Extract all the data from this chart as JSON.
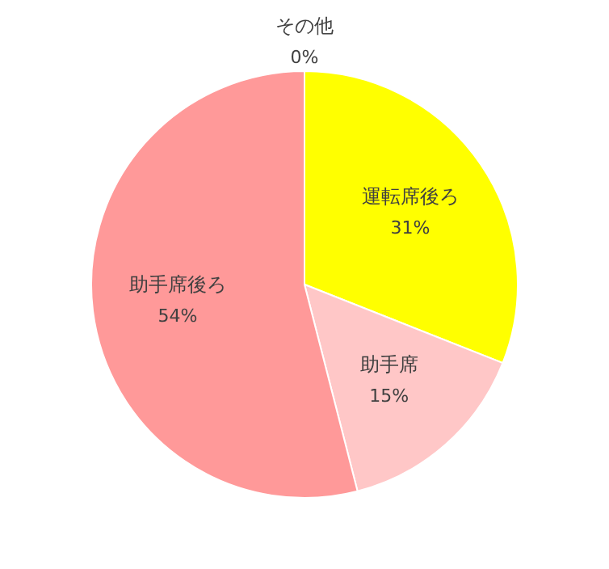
{
  "chart_data": {
    "type": "pie",
    "categories": [
      "運転席後ろ",
      "助手席",
      "助手席後ろ",
      "その他"
    ],
    "values": [
      31,
      15,
      54,
      0
    ],
    "colors": [
      "#ffff00",
      "#ffc7c7",
      "#ff9999",
      "#a5a5a5"
    ],
    "value_labels": [
      "31%",
      "15%",
      "54%",
      "0%"
    ],
    "legend": false
  }
}
